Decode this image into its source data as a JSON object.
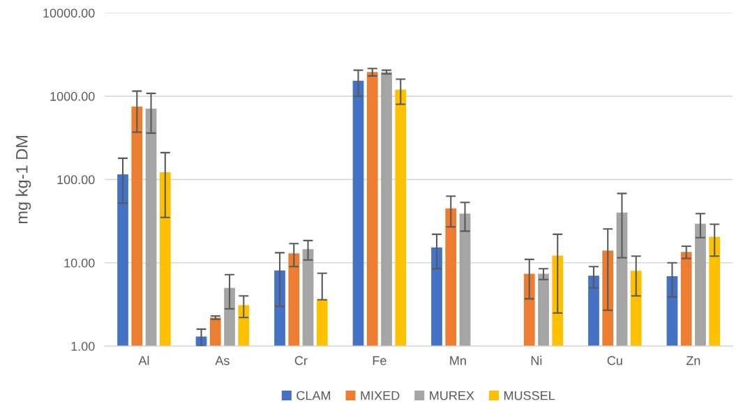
{
  "chart_data": {
    "type": "bar",
    "ylabel": "mg kg-1 DM",
    "log": true,
    "grid": "y",
    "legend": "bottom",
    "categories": [
      "Al",
      "As",
      "Cr",
      "Fe",
      "Mn",
      "Ni",
      "Cu",
      "Zn"
    ],
    "ylim": [
      1,
      10000
    ],
    "yticks": [
      {
        "value": 1,
        "label": "1.00"
      },
      {
        "value": 10,
        "label": "10.00"
      },
      {
        "value": 100,
        "label": "100.00"
      },
      {
        "value": 1000,
        "label": "1000.00"
      },
      {
        "value": 10000,
        "label": "10000.00"
      }
    ],
    "series": [
      {
        "name": "CLAM",
        "color": "#4472c4",
        "values": [
          115,
          1.3,
          8.1,
          1530,
          15.3,
          null,
          7.0,
          6.9
        ],
        "errors": [
          [
            52,
            180
          ],
          [
            1.0,
            1.6
          ],
          [
            3.0,
            13.2
          ],
          [
            1000,
            2050
          ],
          [
            8.5,
            22
          ],
          null,
          [
            5.0,
            9.0
          ],
          [
            3.9,
            10
          ]
        ]
      },
      {
        "name": "MIXED",
        "color": "#ed7d31",
        "values": [
          750,
          2.2,
          13,
          1950,
          45,
          7.4,
          14,
          13.5
        ],
        "errors": [
          [
            370,
            1150
          ],
          [
            2.1,
            2.3
          ],
          [
            9,
            17
          ],
          [
            1750,
            2150
          ],
          [
            27,
            63
          ],
          [
            3.7,
            11
          ],
          [
            2.7,
            25.5
          ],
          [
            11.3,
            15.8
          ]
        ]
      },
      {
        "name": "MUREX",
        "color": "#a5a5a5",
        "values": [
          710,
          5.0,
          14.6,
          1950,
          39,
          7.4,
          40,
          29.5
        ],
        "errors": [
          [
            360,
            1080
          ],
          [
            2.8,
            7.2
          ],
          [
            10.8,
            18.5
          ],
          [
            1850,
            2050
          ],
          [
            24,
            53
          ],
          [
            6.3,
            8.5
          ],
          [
            11.5,
            68
          ],
          [
            20,
            39
          ]
        ]
      },
      {
        "name": "MUSSEL",
        "color": "#ffc000",
        "values": [
          122,
          3.1,
          3.6,
          1200,
          null,
          12.2,
          8.0,
          20.5
        ],
        "errors": [
          [
            35,
            210
          ],
          [
            2.2,
            4.0
          ],
          [
            3.6,
            7.5
          ],
          [
            800,
            1600
          ],
          null,
          [
            2.5,
            22
          ],
          [
            4.0,
            12
          ],
          [
            12,
            29
          ]
        ]
      }
    ]
  }
}
